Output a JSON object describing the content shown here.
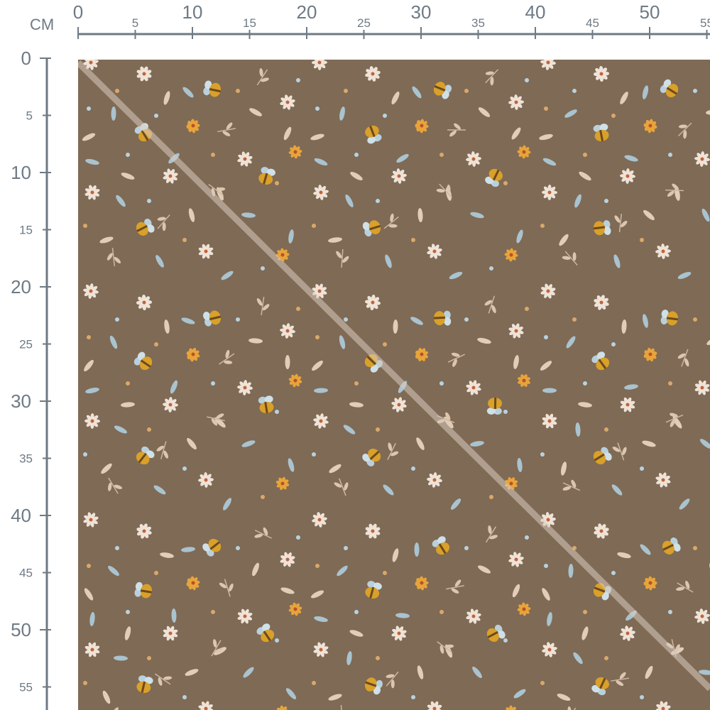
{
  "ruler": {
    "unit_label": "CM",
    "top_labels": [
      "0",
      "5",
      "10",
      "15",
      "20",
      "25",
      "30",
      "35",
      "40",
      "45",
      "50",
      "55"
    ],
    "left_labels": [
      "0",
      "5",
      "10",
      "15",
      "20",
      "25",
      "30",
      "35",
      "40",
      "45",
      "50",
      "55"
    ],
    "color": "#6e7a85"
  },
  "swatch": {
    "background_color": "#7f6a55",
    "motifs": [
      "bee-icon",
      "daisy-icon",
      "orange-flower-icon",
      "blue-leaf-icon",
      "beige-leaf-icon",
      "sprig-icon",
      "dot-icon"
    ]
  }
}
